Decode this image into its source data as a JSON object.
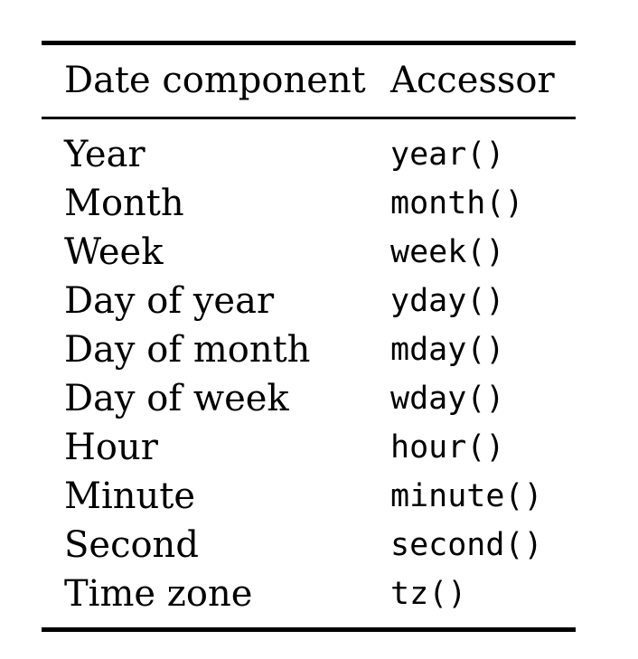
{
  "table": {
    "headers": {
      "component": "Date component",
      "accessor": "Accessor"
    },
    "rows": [
      {
        "component": "Year",
        "accessor": "year()"
      },
      {
        "component": "Month",
        "accessor": "month()"
      },
      {
        "component": "Week",
        "accessor": "week()"
      },
      {
        "component": "Day of year",
        "accessor": "yday()"
      },
      {
        "component": "Day of month",
        "accessor": "mday()"
      },
      {
        "component": "Day of week",
        "accessor": "wday()"
      },
      {
        "component": "Hour",
        "accessor": "hour()"
      },
      {
        "component": "Minute",
        "accessor": "minute()"
      },
      {
        "component": "Second",
        "accessor": "second()"
      },
      {
        "component": "Time zone",
        "accessor": "tz()"
      }
    ]
  }
}
